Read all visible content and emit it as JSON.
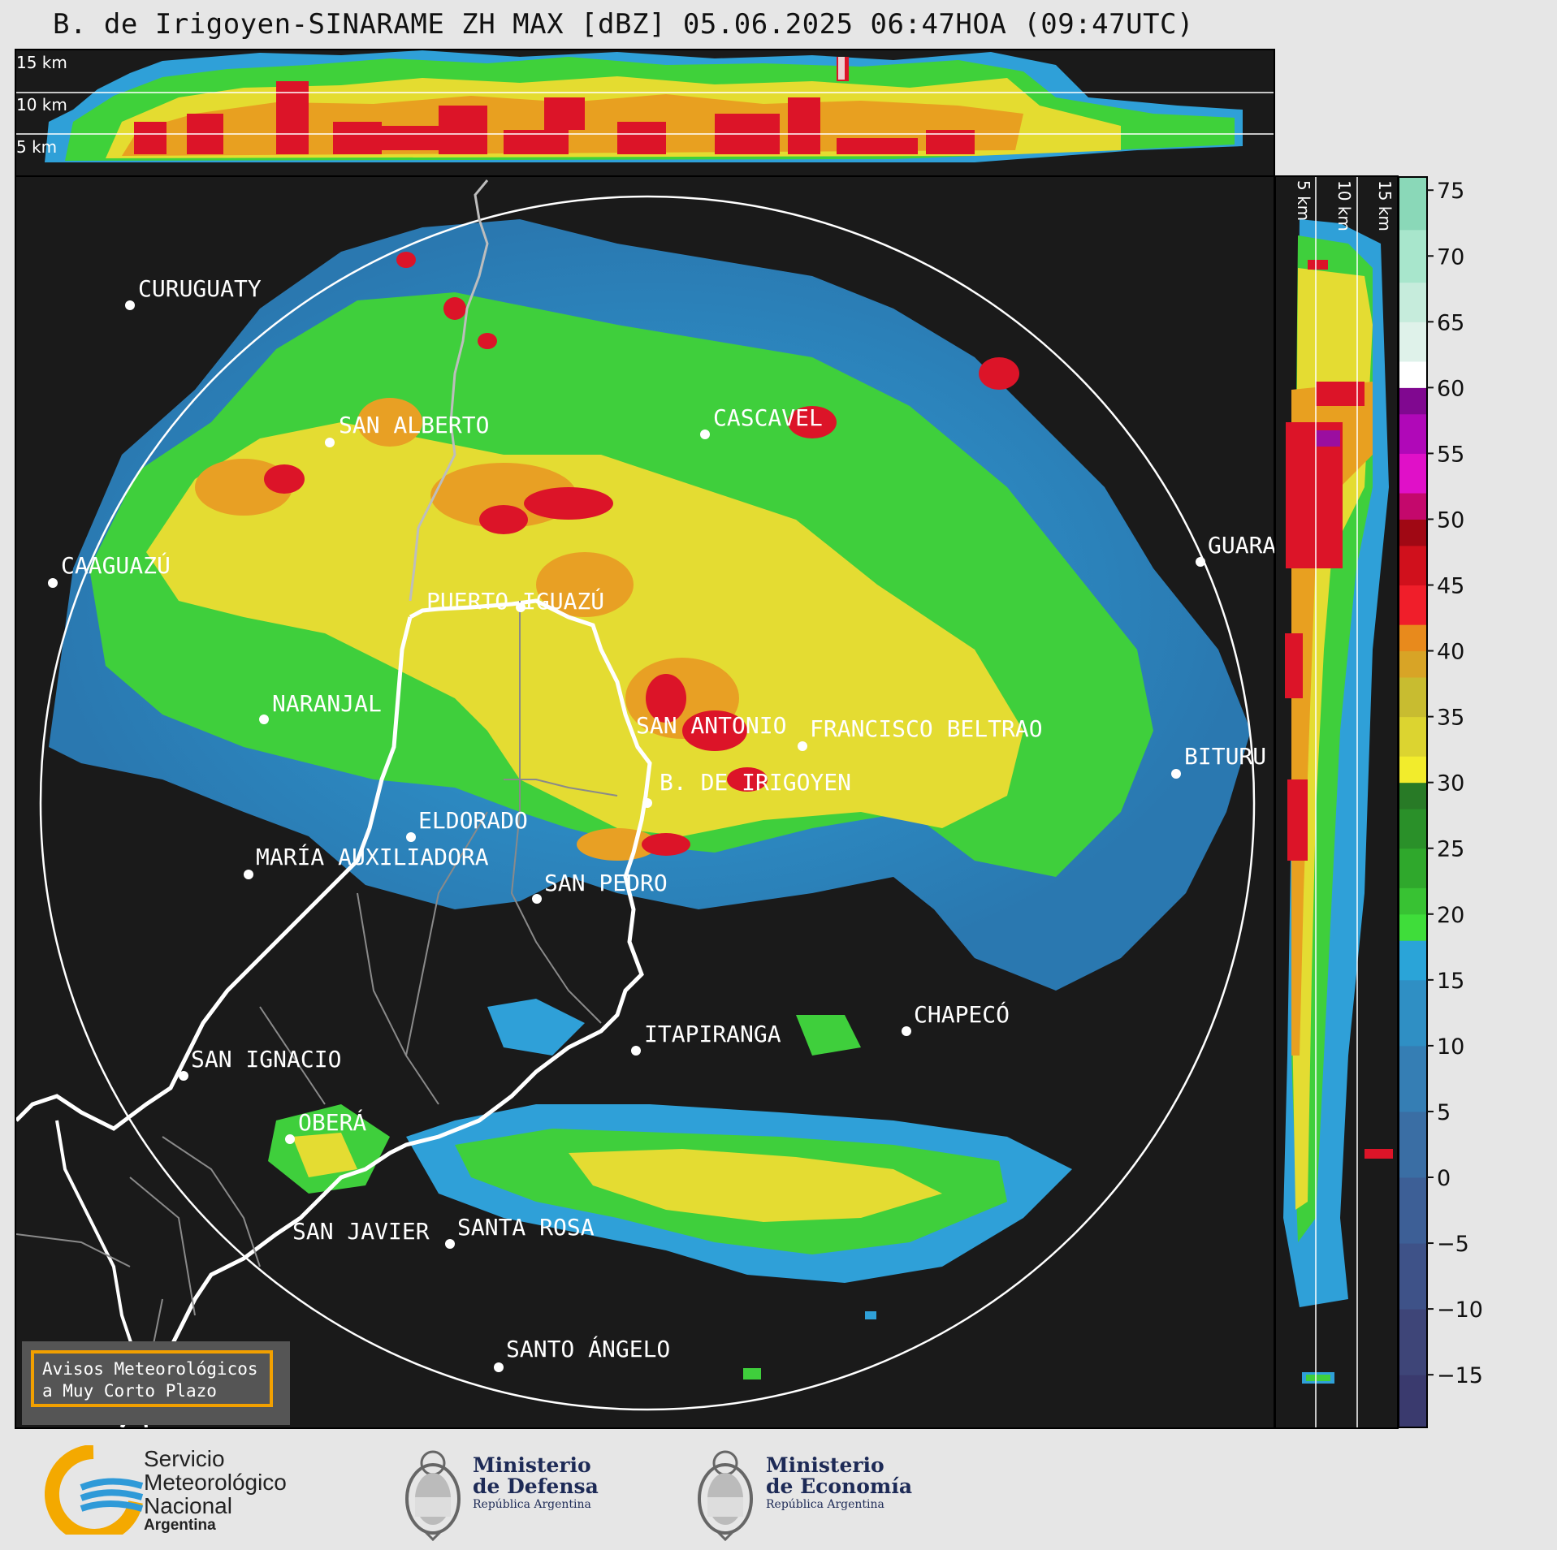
{
  "title": "B. de Irigoyen-SINARAME ZH MAX [dBZ] 05.06.2025 06:47HOA (09:47UTC)",
  "top_panel": {
    "altitude_labels": [
      "15 km",
      "10 km",
      "5 km"
    ]
  },
  "side_panel": {
    "altitude_labels": [
      "5 km",
      "10 km",
      "15 km"
    ]
  },
  "colorbar": {
    "ticks": [
      "75",
      "70",
      "65",
      "60",
      "55",
      "50",
      "45",
      "40",
      "35",
      "30",
      "25",
      "20",
      "15",
      "10",
      "5",
      "0",
      "−5",
      "−10",
      "−15"
    ],
    "tick_values": [
      75,
      70,
      65,
      60,
      55,
      50,
      45,
      40,
      35,
      30,
      25,
      20,
      15,
      10,
      5,
      0,
      -5,
      -10,
      -15
    ],
    "range": [
      -19,
      76
    ]
  },
  "cities": [
    {
      "name": "CURUGUATY"
    },
    {
      "name": "SAN ALBERTO"
    },
    {
      "name": "CASCAVEL"
    },
    {
      "name": "CAAGUAZÚ"
    },
    {
      "name": "GUARA"
    },
    {
      "name": "PUERTO IGUAZÚ"
    },
    {
      "name": "NARANJAL"
    },
    {
      "name": "SAN ANTONIO"
    },
    {
      "name": "FRANCISCO BELTRAO"
    },
    {
      "name": "BITURU"
    },
    {
      "name": "B. DE IRIGOYEN"
    },
    {
      "name": "ELDORADO"
    },
    {
      "name": "MARÍA AUXILIADORA"
    },
    {
      "name": "SAN PEDRO"
    },
    {
      "name": "CHAPECÓ"
    },
    {
      "name": "ITAPIRANGA"
    },
    {
      "name": "SAN IGNACIO"
    },
    {
      "name": "OBERÁ"
    },
    {
      "name": "SAN JAVIER"
    },
    {
      "name": "SANTA ROSA"
    },
    {
      "name": "SANTO ÁNGELO"
    }
  ],
  "warning": {
    "line1": "Avisos Meteorológicos",
    "line2": "a Muy Corto Plazo"
  },
  "footer": {
    "smn": {
      "line1": "Servicio",
      "line2": "Meteorológico",
      "line3": "Nacional",
      "line4": "Argentina"
    },
    "defensa": {
      "line1": "Ministerio",
      "line2": "de Defensa",
      "line3": "República Argentina"
    },
    "economia": {
      "line1": "Ministerio",
      "line2": "de Economía",
      "line3": "República Argentina"
    }
  },
  "colors": {
    "background": "#e6e6e6",
    "panel": "#1a1a1a",
    "accent": "#f2a000"
  }
}
